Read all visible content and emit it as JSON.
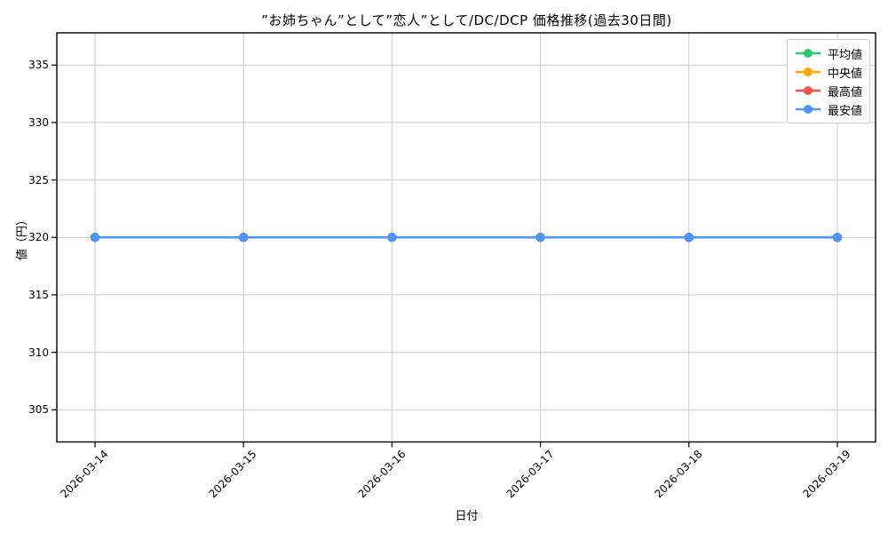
{
  "chart_data": {
    "type": "line",
    "title": "”お姉ちゃん”として”恋人”として/DC/DCP 価格推移(過去30日間)",
    "xlabel": "日付",
    "ylabel": "値（円）",
    "x": [
      "2026-03-14",
      "2026-03-15",
      "2026-03-16",
      "2026-03-17",
      "2026-03-18",
      "2026-03-19"
    ],
    "series": [
      {
        "name": "平均値",
        "color": "#2dc96e",
        "values": [
          320,
          320,
          320,
          320,
          320,
          320
        ]
      },
      {
        "name": "中央値",
        "color": "#ffa502",
        "values": [
          320,
          320,
          320,
          320,
          320,
          320
        ]
      },
      {
        "name": "最高値",
        "color": "#f2534e",
        "values": [
          320,
          320,
          320,
          320,
          320,
          320
        ]
      },
      {
        "name": "最安値",
        "color": "#4d94ff",
        "values": [
          320,
          320,
          320,
          320,
          320,
          320
        ]
      }
    ],
    "yticks": [
      305,
      310,
      315,
      320,
      325,
      330,
      335
    ],
    "ylim": [
      302.2,
      337.8
    ],
    "grid": true,
    "grid_color": "#cccccc",
    "axis_color": "#000000",
    "legend_position": "upper right",
    "note_all_series_overlap_at": 320
  }
}
